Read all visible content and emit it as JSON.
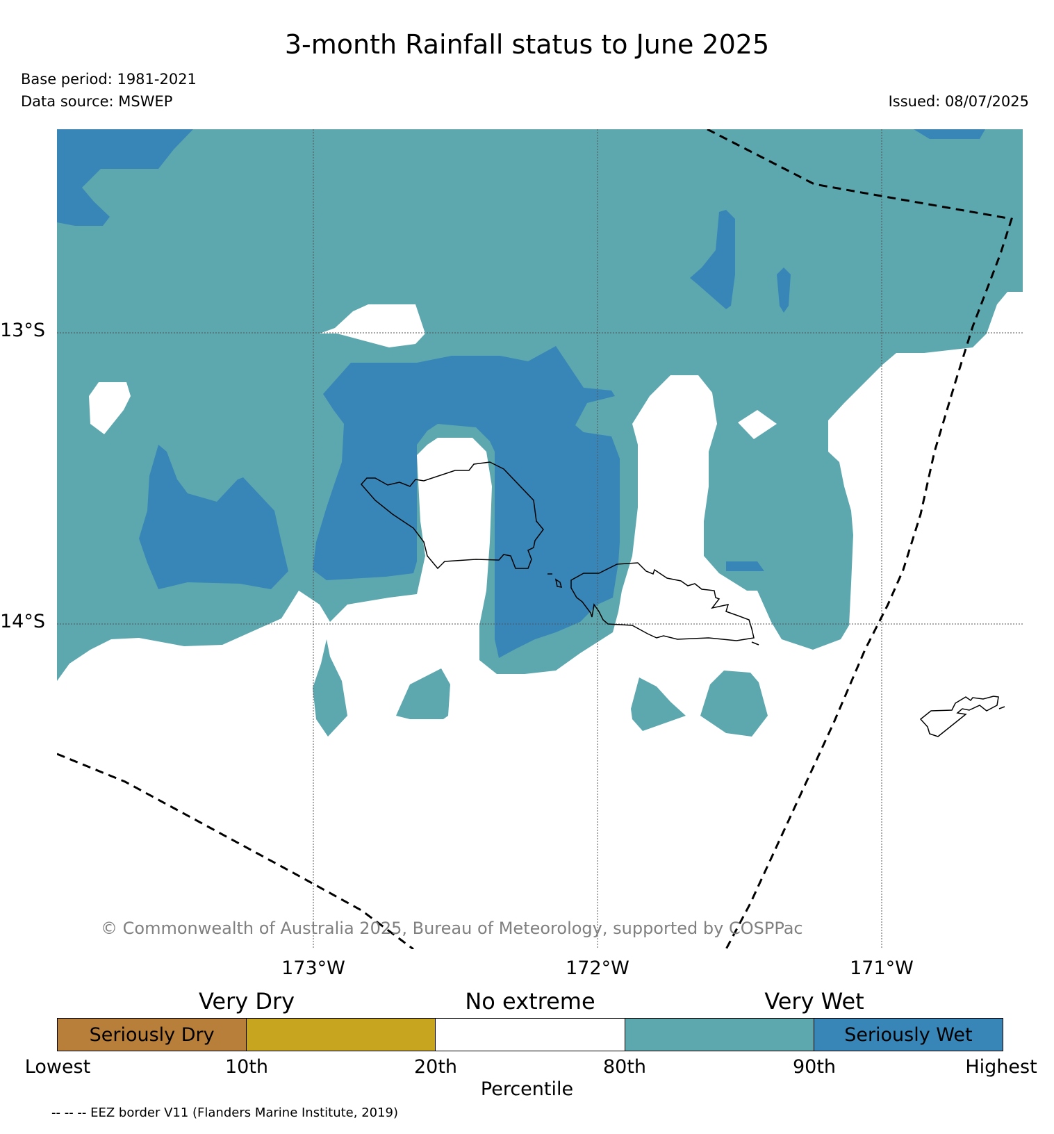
{
  "title": "3-month Rainfall status to June 2025",
  "base_period": "Base period: 1981-2021",
  "data_source": "Data source: MSWEP",
  "issued": "Issued: 08/07/2025",
  "credit": "© Commonwealth of Australia 2025, Bureau of Meteorology, supported by COSPPac",
  "longitude_labels": [
    "173°W",
    "172°W",
    "171°W"
  ],
  "latitude_labels": [
    "13°S",
    "14°S"
  ],
  "legend": {
    "category_labels": [
      "Very Dry",
      "No extreme",
      "Very Wet"
    ],
    "segments": [
      {
        "label": "Seriously Dry",
        "color": "#b87f3a"
      },
      {
        "label": "",
        "color": "#c8a51e"
      },
      {
        "label": "",
        "color": "#ffffff"
      },
      {
        "label": "",
        "color": "#5ca8ae"
      },
      {
        "label": "Seriously Wet",
        "color": "#3886b8"
      }
    ],
    "tick_labels": [
      "Lowest",
      "10th",
      "20th",
      "80th",
      "90th",
      "Highest"
    ],
    "axis_label": "Percentile"
  },
  "eez_note": "-- -- -- EEZ border V11 (Flanders Marine Institute, 2019)",
  "colors": {
    "very_wet": "#5ca8ae",
    "seriously_wet": "#3886b8",
    "no_extreme": "#ffffff",
    "very_dry": "#c8a51e",
    "seriously_dry": "#b87f3a"
  }
}
